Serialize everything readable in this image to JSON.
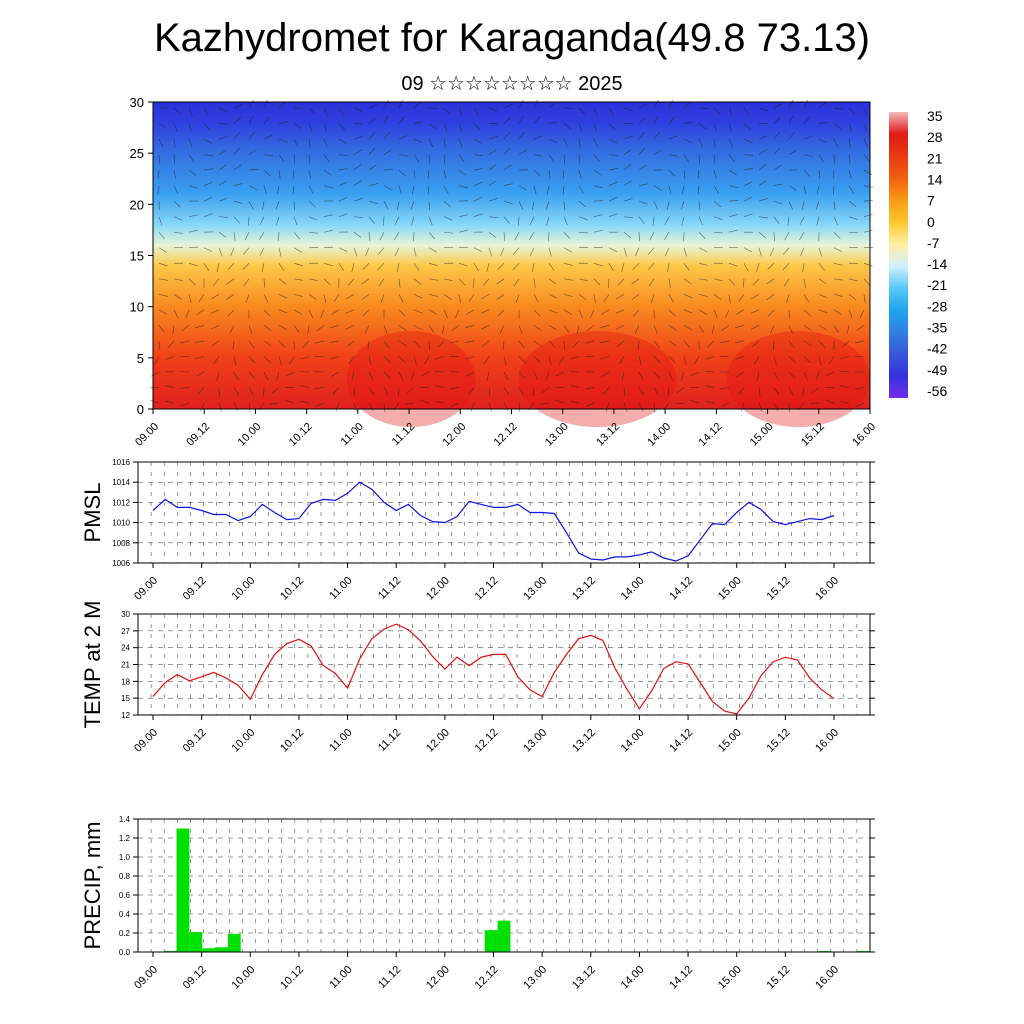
{
  "header": {
    "title": "Kazhydromet for Karaganda(49.8 73.13)",
    "subtitle": "09 ☆☆☆☆☆☆☆☆ 2025"
  },
  "colors": {
    "pmsl": "#1010e0",
    "temp": "#e01010",
    "precip": "#00e000"
  },
  "chart_data": [
    {
      "type": "heatmap",
      "title": "",
      "x_ticks": [
        "09.00",
        "09.12",
        "10.00",
        "10.12",
        "11.00",
        "11.12",
        "12.00",
        "12.12",
        "13.00",
        "13.12",
        "14.00",
        "14.12",
        "15.00",
        "15.12",
        "16.00"
      ],
      "y_ticks": [
        "0",
        "5",
        "10",
        "15",
        "20",
        "25",
        "30"
      ],
      "ylim": [
        0,
        30
      ],
      "colorbar": {
        "labels": [
          "35",
          "28",
          "21",
          "14",
          "7",
          "0",
          "-7",
          "-14",
          "-21",
          "-28",
          "-35",
          "-42",
          "-49",
          "-56"
        ],
        "colors": [
          "#f5b8b8",
          "#e01a1a",
          "#ea3a10",
          "#f26010",
          "#f89a14",
          "#fcc62c",
          "#fef0a0",
          "#d0f0ff",
          "#58c8f8",
          "#20a4f0",
          "#3080e0",
          "#3858d8",
          "#3830e0",
          "#7030e8"
        ]
      },
      "field_profile": [
        {
          "level": 0,
          "color": "#e02020"
        },
        {
          "level": 5,
          "color": "#f04018"
        },
        {
          "level": 10,
          "color": "#f88a20"
        },
        {
          "level": 14,
          "color": "#fcc848"
        },
        {
          "level": 16,
          "color": "#e8f4d8"
        },
        {
          "level": 18,
          "color": "#88d8f8"
        },
        {
          "level": 21,
          "color": "#3aa0f0"
        },
        {
          "level": 25,
          "color": "#3470e0"
        },
        {
          "level": 28,
          "color": "#3040e0"
        },
        {
          "level": 30,
          "color": "#2a30d8"
        }
      ]
    },
    {
      "type": "line",
      "ylabel": "PMSL",
      "ylim": [
        1006,
        1016
      ],
      "y_ticks": [
        "1006",
        "1008",
        "1010",
        "1012",
        "1014",
        "1016"
      ],
      "x_ticks": [
        "09.00",
        "09.12",
        "10.00",
        "10.12",
        "11.00",
        "11.12",
        "12.00",
        "12.12",
        "13.00",
        "13.12",
        "14.00",
        "14.12",
        "15.00",
        "15.12",
        "16.00"
      ],
      "series": [
        {
          "values": [
            1011.2,
            1012.3,
            1011.5,
            1011.5,
            1011.2,
            1010.8,
            1010.8,
            1010.2,
            1010.6,
            1011.8,
            1011.0,
            1010.3,
            1010.4,
            1011.9,
            1012.3,
            1012.2,
            1012.9,
            1014.0,
            1013.3,
            1012.0,
            1011.2,
            1011.8,
            1010.7,
            1010.1,
            1010.0,
            1010.6,
            1012.1,
            1011.8,
            1011.5,
            1011.5,
            1011.8,
            1011.0,
            1011.0,
            1010.9,
            1009.0,
            1007.0,
            1006.4,
            1006.3,
            1006.6,
            1006.6,
            1006.8,
            1007.1,
            1006.5,
            1006.2,
            1006.7,
            1008.3,
            1009.9,
            1009.8,
            1011.0,
            1012.0,
            1011.3,
            1010.1,
            1009.8,
            1010.1,
            1010.4,
            1010.3,
            1010.7
          ]
        }
      ]
    },
    {
      "type": "line",
      "ylabel": "TEMP at 2 M",
      "ylim": [
        12,
        30
      ],
      "y_ticks": [
        "12",
        "15",
        "18",
        "21",
        "24",
        "27",
        "30"
      ],
      "x_ticks": [
        "09.00",
        "09.12",
        "10.00",
        "10.12",
        "11.00",
        "11.12",
        "12.00",
        "12.12",
        "13.00",
        "13.12",
        "14.00",
        "14.12",
        "15.00",
        "15.12",
        "16.00"
      ],
      "series": [
        {
          "values": [
            15.3,
            17.8,
            19.2,
            18.1,
            18.8,
            19.6,
            18.6,
            17.3,
            14.8,
            19.2,
            22.8,
            24.7,
            25.5,
            24.3,
            20.8,
            19.4,
            16.8,
            22.0,
            25.6,
            27.3,
            28.2,
            27.2,
            25.2,
            22.4,
            20.2,
            22.3,
            20.8,
            22.3,
            22.8,
            22.8,
            18.8,
            16.5,
            15.3,
            19.6,
            22.8,
            25.6,
            26.2,
            25.3,
            20.3,
            16.5,
            13.1,
            16.3,
            20.3,
            21.5,
            21.1,
            17.8,
            14.4,
            12.7,
            12.2,
            15.0,
            19.0,
            21.5,
            22.3,
            21.8,
            18.6,
            16.5,
            14.9
          ]
        }
      ]
    },
    {
      "type": "bar",
      "ylabel": "PRECIP, mm",
      "ylim": [
        0,
        1.4
      ],
      "y_ticks": [
        "0.0",
        "0.2",
        "0.4",
        "0.6",
        "0.8",
        "1.0",
        "1.2",
        "1.4"
      ],
      "x_ticks": [
        "09.00",
        "09.12",
        "10.00",
        "10.12",
        "11.00",
        "11.12",
        "12.00",
        "12.12",
        "13.00",
        "13.12",
        "14.00",
        "14.12",
        "15.00",
        "15.12",
        "16.00"
      ],
      "bars": [
        {
          "index": 2,
          "value": 0.01
        },
        {
          "index": 3,
          "value": 1.3
        },
        {
          "index": 4,
          "value": 0.21
        },
        {
          "index": 5,
          "value": 0.04
        },
        {
          "index": 6,
          "value": 0.05
        },
        {
          "index": 7,
          "value": 0.19
        },
        {
          "index": 27,
          "value": 0.23
        },
        {
          "index": 28,
          "value": 0.33
        },
        {
          "index": 53,
          "value": 0.01
        },
        {
          "index": 56,
          "value": 0.01
        }
      ]
    }
  ]
}
